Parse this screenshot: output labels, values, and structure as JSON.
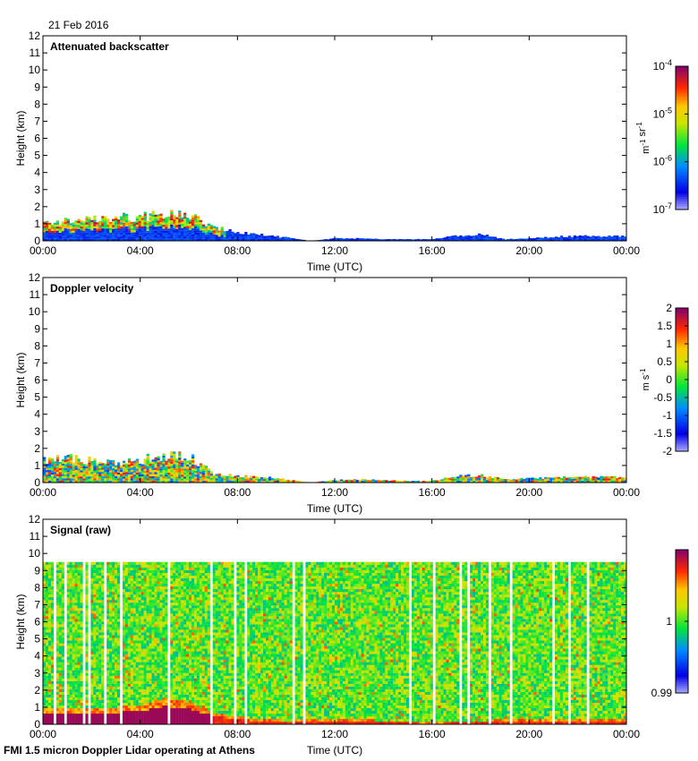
{
  "figure": {
    "date": "21 Feb 2016",
    "footer": "FMI 1.5 micron Doppler Lidar operating at Athens"
  },
  "chart_data": [
    {
      "type": "heatmap",
      "title": "Attenuated backscatter",
      "xlabel": "Time (UTC)",
      "ylabel": "Height (km)",
      "xlim": [
        0,
        24
      ],
      "ylim": [
        0,
        12
      ],
      "xticks": [
        "00:00",
        "04:00",
        "08:00",
        "12:00",
        "16:00",
        "20:00",
        "00:00"
      ],
      "yticks": [
        "0",
        "1",
        "2",
        "3",
        "4",
        "5",
        "6",
        "7",
        "8",
        "9",
        "10",
        "11",
        "12"
      ],
      "colorbar": {
        "scale": "log",
        "unit": "m-1 sr-1",
        "ticks": [
          {
            "base": "10",
            "exp": "-4",
            "value": -4
          },
          {
            "base": "10",
            "exp": "-5",
            "value": -5
          },
          {
            "base": "10",
            "exp": "-6",
            "value": -6
          },
          {
            "base": "10",
            "exp": "-7",
            "value": -7
          }
        ],
        "range": [
          -7,
          -4
        ]
      },
      "layer_top_km": [
        [
          0,
          1.1
        ],
        [
          1,
          1.2
        ],
        [
          2,
          1.3
        ],
        [
          3,
          1.4
        ],
        [
          4,
          1.5
        ],
        [
          5,
          1.6
        ],
        [
          6,
          1.6
        ],
        [
          7,
          0.9
        ],
        [
          8,
          0.5
        ],
        [
          9,
          0.4
        ],
        [
          10,
          0.2
        ],
        [
          11,
          0.0
        ],
        [
          12,
          0.15
        ],
        [
          13,
          0.15
        ],
        [
          14,
          0.1
        ],
        [
          15,
          0.1
        ],
        [
          16,
          0.1
        ],
        [
          17,
          0.3
        ],
        [
          18,
          0.4
        ],
        [
          19,
          0.1
        ],
        [
          20,
          0.15
        ],
        [
          21,
          0.25
        ],
        [
          22,
          0.3
        ],
        [
          23,
          0.3
        ],
        [
          24,
          0.3
        ]
      ]
    },
    {
      "type": "heatmap",
      "title": "Doppler velocity",
      "xlabel": "Time (UTC)",
      "ylabel": "Height (km)",
      "xlim": [
        0,
        24
      ],
      "ylim": [
        0,
        12
      ],
      "xticks": [
        "00:00",
        "04:00",
        "08:00",
        "12:00",
        "16:00",
        "20:00",
        "00:00"
      ],
      "yticks": [
        "0",
        "1",
        "2",
        "3",
        "4",
        "5",
        "6",
        "7",
        "8",
        "9",
        "10",
        "11",
        "12"
      ],
      "colorbar": {
        "scale": "linear",
        "unit": "m s-1",
        "ticks": [
          "2",
          "1.5",
          "1",
          "0.5",
          "0",
          "-0.5",
          "-1",
          "-1.5",
          "-2"
        ],
        "range": [
          -2,
          2
        ]
      },
      "layer_top_km": [
        [
          0,
          1.4
        ],
        [
          1,
          1.6
        ],
        [
          2,
          1.3
        ],
        [
          3,
          1.2
        ],
        [
          4,
          1.4
        ],
        [
          5,
          1.7
        ],
        [
          6,
          1.6
        ],
        [
          7,
          0.6
        ],
        [
          8,
          0.4
        ],
        [
          9,
          0.35
        ],
        [
          10,
          0.2
        ],
        [
          11,
          0.0
        ],
        [
          12,
          0.15
        ],
        [
          13,
          0.2
        ],
        [
          14,
          0.15
        ],
        [
          15,
          0.1
        ],
        [
          16,
          0.1
        ],
        [
          17,
          0.4
        ],
        [
          18,
          0.45
        ],
        [
          19,
          0.2
        ],
        [
          20,
          0.25
        ],
        [
          21,
          0.3
        ],
        [
          22,
          0.35
        ],
        [
          23,
          0.35
        ],
        [
          24,
          0.35
        ]
      ]
    },
    {
      "type": "heatmap",
      "title": "Signal (raw)",
      "xlabel": "Time (UTC)",
      "ylabel": "Height (km)",
      "xlim": [
        0,
        24
      ],
      "ylim": [
        0,
        12
      ],
      "xticks": [
        "00:00",
        "04:00",
        "08:00",
        "12:00",
        "16:00",
        "20:00",
        "00:00"
      ],
      "yticks": [
        "0",
        "1",
        "2",
        "3",
        "4",
        "5",
        "6",
        "7",
        "8",
        "9",
        "10",
        "11",
        "12"
      ],
      "colorbar": {
        "scale": "linear",
        "unit": "",
        "ticks": [
          "1",
          "0.99"
        ],
        "range": [
          0.99,
          1.01
        ]
      },
      "data_top_km": 9.5,
      "boundary_layer_km": [
        [
          0,
          1.0
        ],
        [
          2,
          1.0
        ],
        [
          4,
          1.2
        ],
        [
          5,
          1.6
        ],
        [
          6,
          1.4
        ],
        [
          7,
          0.8
        ],
        [
          8,
          0.5
        ],
        [
          9,
          0.4
        ],
        [
          10,
          0.3
        ],
        [
          12,
          0.4
        ],
        [
          14,
          0.3
        ],
        [
          16,
          0.2
        ],
        [
          18,
          0.3
        ],
        [
          20,
          0.4
        ],
        [
          22,
          0.4
        ],
        [
          24,
          0.4
        ]
      ]
    }
  ]
}
